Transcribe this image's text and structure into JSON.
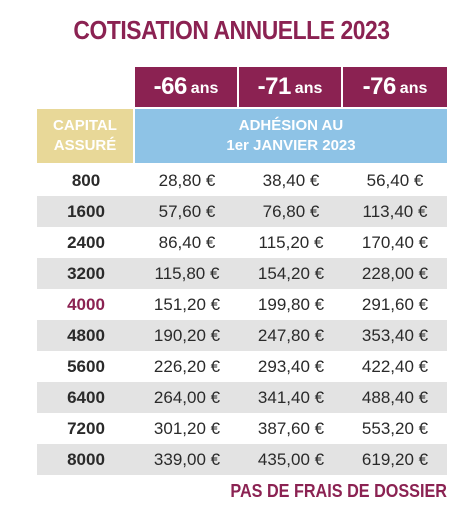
{
  "title": "COTISATION ANNUELLE 2023",
  "age_columns": [
    {
      "age": "-66",
      "unit": "ans"
    },
    {
      "age": "-71",
      "unit": "ans"
    },
    {
      "age": "-76",
      "unit": "ans"
    }
  ],
  "capital_header": {
    "line1": "CAPITAL",
    "line2": "ASSURÉ"
  },
  "adhesion_header": {
    "line1": "ADHÉSION AU",
    "line2": "1er JANVIER 2023"
  },
  "rows": [
    {
      "capital": "800",
      "prices": [
        "28,80 €",
        "38,40 €",
        "56,40 €"
      ]
    },
    {
      "capital": "1600",
      "prices": [
        "57,60 €",
        "76,80 €",
        "113,40 €"
      ]
    },
    {
      "capital": "2400",
      "prices": [
        "86,40 €",
        "115,20 €",
        "170,40 €"
      ]
    },
    {
      "capital": "3200",
      "prices": [
        "115,80 €",
        "154,20 €",
        "228,00 €"
      ]
    },
    {
      "capital": "4000",
      "prices": [
        "151,20 €",
        "199,80 €",
        "291,60 €"
      ]
    },
    {
      "capital": "4800",
      "prices": [
        "190,20 €",
        "247,80 €",
        "353,40 €"
      ]
    },
    {
      "capital": "5600",
      "prices": [
        "226,20 €",
        "293,40 €",
        "422,40 €"
      ]
    },
    {
      "capital": "6400",
      "prices": [
        "264,00 €",
        "341,40 €",
        "488,40 €"
      ]
    },
    {
      "capital": "7200",
      "prices": [
        "301,20 €",
        "387,60 €",
        "553,20 €"
      ]
    },
    {
      "capital": "8000",
      "prices": [
        "339,00 €",
        "435,00 €",
        "619,20 €"
      ]
    }
  ],
  "footer": "PAS DE FRAIS DE DOSSIER",
  "colors": {
    "brand": "#8b2252",
    "capital_header_bg": "#e8d898",
    "adhesion_header_bg": "#8ec3e6",
    "row_shade": "#e3e3e3",
    "highlight_text": "#8b2252"
  }
}
